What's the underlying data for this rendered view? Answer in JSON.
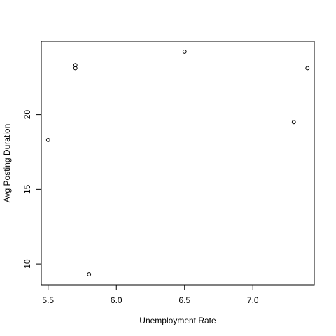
{
  "chart_data": {
    "type": "scatter",
    "title": "",
    "xlabel": "Unemployment Rate",
    "ylabel": "Avg Posting Duration",
    "xlim": [
      5.45,
      7.45
    ],
    "ylim": [
      8.6,
      24.9
    ],
    "xticks": [
      5.5,
      6.0,
      6.5,
      7.0
    ],
    "xtick_labels": [
      "5.5",
      "6.0",
      "6.5",
      "7.0"
    ],
    "yticks": [
      10,
      15,
      20
    ],
    "ytick_labels": [
      "10",
      "15",
      "20"
    ],
    "grid": false,
    "legend": "none",
    "marker": "open-circle",
    "colors": {
      "points": "#000000",
      "axes": "#000000",
      "background": "#ffffff"
    },
    "points": [
      {
        "x": 5.5,
        "y": 18.3
      },
      {
        "x": 5.7,
        "y": 23.3
      },
      {
        "x": 5.7,
        "y": 23.1
      },
      {
        "x": 5.8,
        "y": 9.3
      },
      {
        "x": 6.5,
        "y": 24.2
      },
      {
        "x": 7.3,
        "y": 19.5
      },
      {
        "x": 7.4,
        "y": 23.1
      }
    ]
  }
}
